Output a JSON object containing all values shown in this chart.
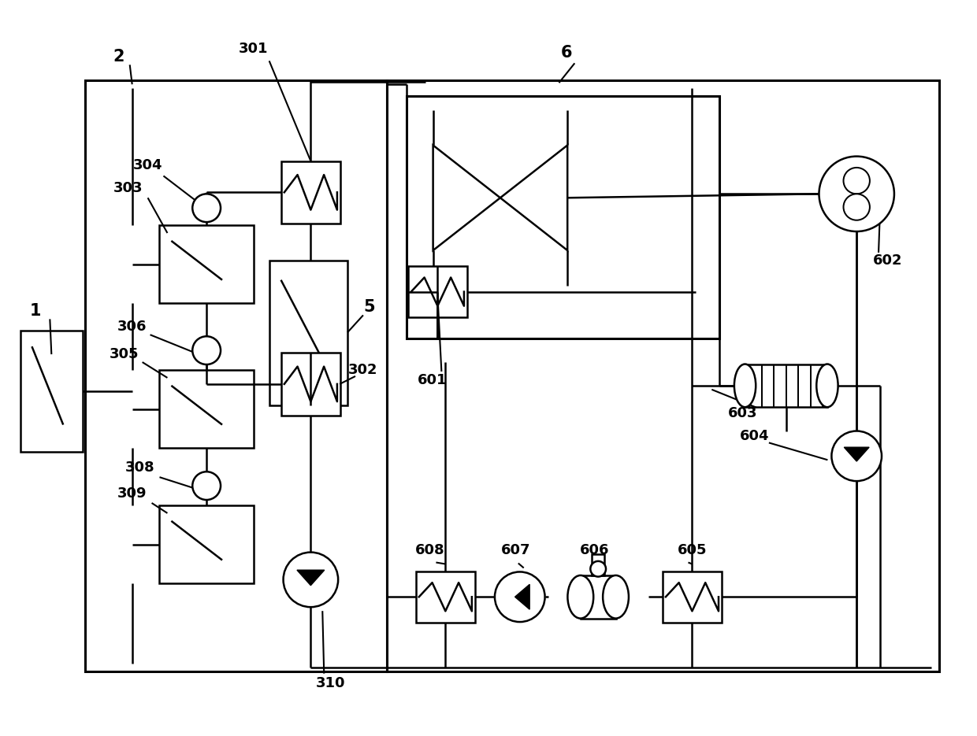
{
  "bg_color": "#ffffff",
  "lw": 1.8,
  "lw_thick": 2.2,
  "fig_width": 12.4,
  "fig_height": 9.35
}
